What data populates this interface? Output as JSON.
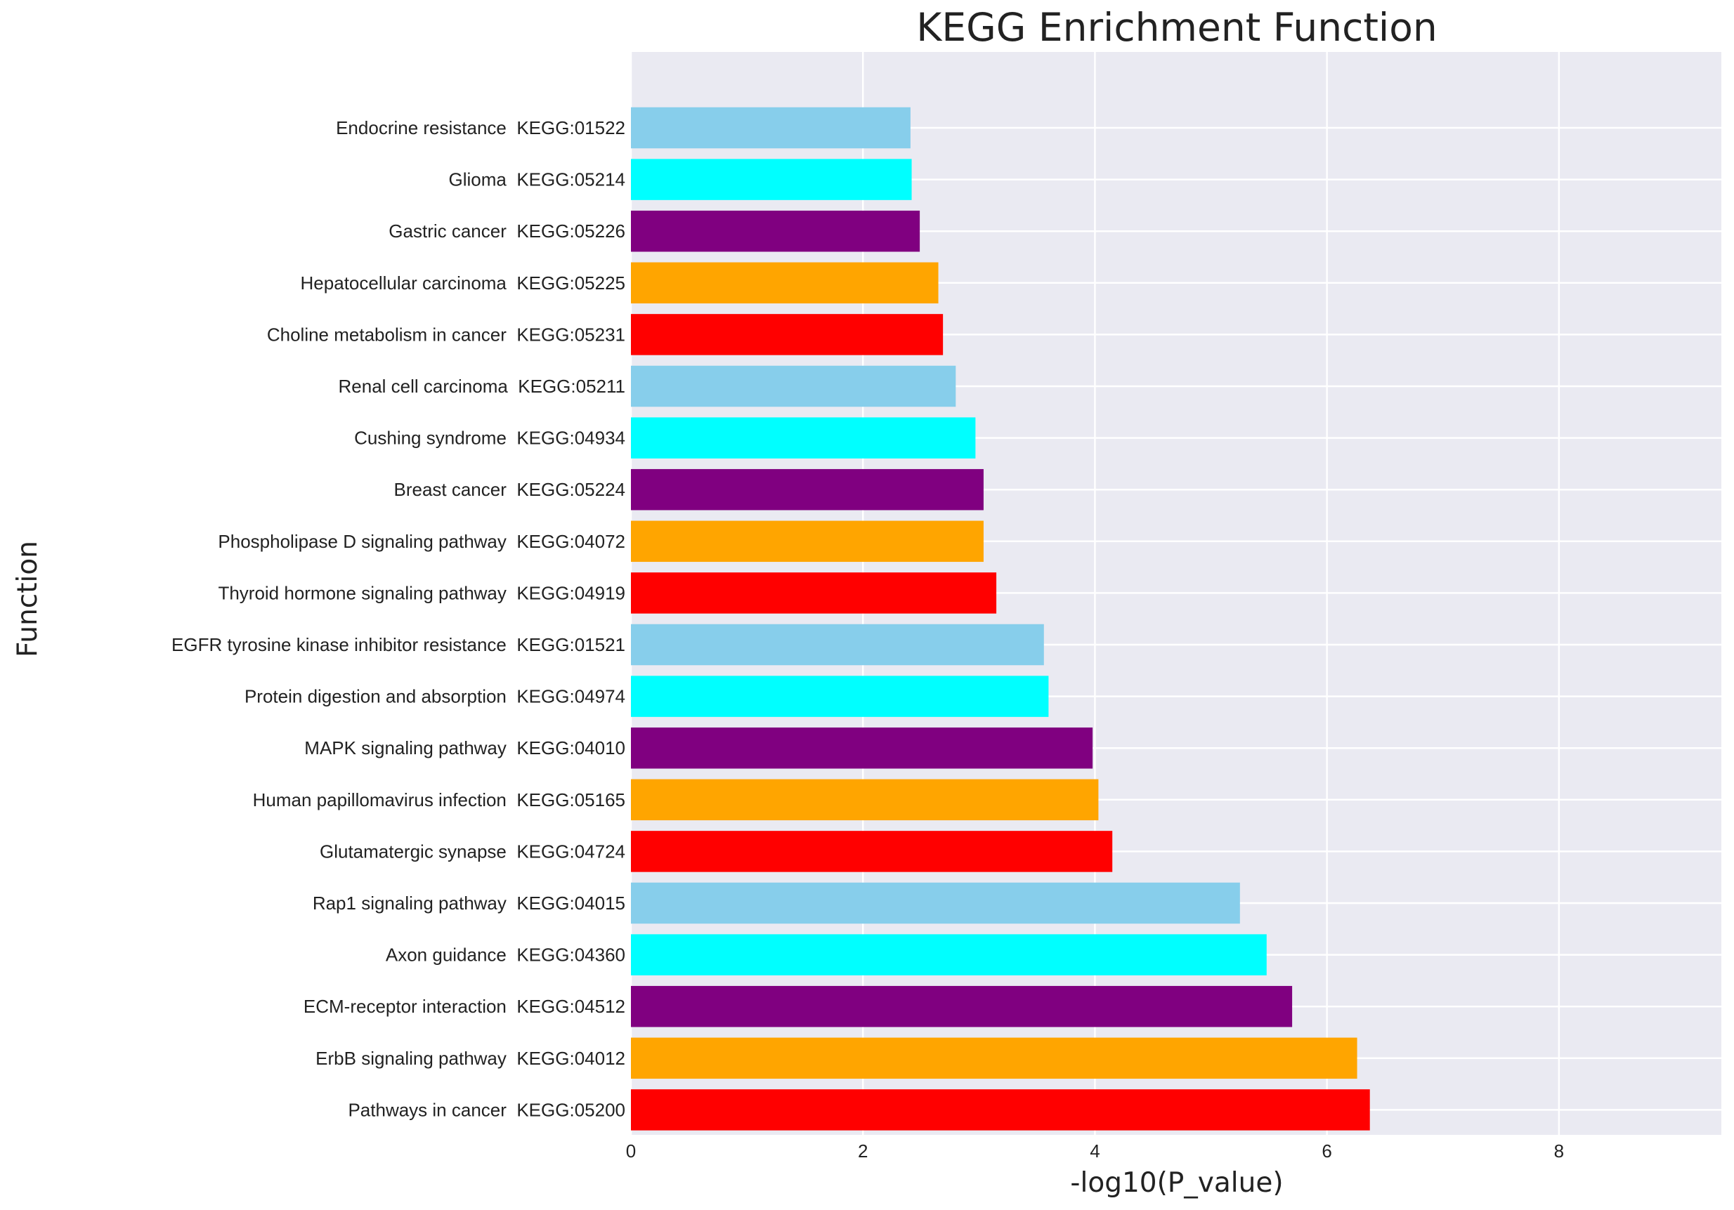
{
  "chart_data": {
    "type": "bar",
    "orientation": "horizontal",
    "title": "KEGG Enrichment Function",
    "xlabel": "-log10(P_value)",
    "ylabel": "Function",
    "xlim": [
      0,
      9.4
    ],
    "xticks": [
      0,
      2,
      4,
      6,
      8
    ],
    "grid": true,
    "background": "#EAEAF2",
    "categories": [
      "Endocrine resistance  KEGG:01522",
      "Glioma  KEGG:05214",
      "Gastric cancer  KEGG:05226",
      "Hepatocellular carcinoma  KEGG:05225",
      "Choline metabolism in cancer  KEGG:05231",
      "Renal cell carcinoma  KEGG:05211",
      "Cushing syndrome  KEGG:04934",
      "Breast cancer  KEGG:05224",
      "Phospholipase D signaling pathway  KEGG:04072",
      "Thyroid hormone signaling pathway  KEGG:04919",
      "EGFR tyrosine kinase inhibitor resistance  KEGG:01521",
      "Protein digestion and absorption  KEGG:04974",
      "MAPK signaling pathway  KEGG:04010",
      "Human papillomavirus infection  KEGG:05165",
      "Glutamatergic synapse  KEGG:04724",
      "Rap1 signaling pathway  KEGG:04015",
      "Axon guidance  KEGG:04360",
      "ECM-receptor interaction  KEGG:04512",
      "ErbB signaling pathway  KEGG:04012",
      "Pathways in cancer  KEGG:05200"
    ],
    "values": [
      2.41,
      2.42,
      2.49,
      2.65,
      2.69,
      2.8,
      2.97,
      3.04,
      3.04,
      3.15,
      3.56,
      3.6,
      3.98,
      4.03,
      4.15,
      5.25,
      5.48,
      5.7,
      6.26,
      6.37
    ],
    "colors": [
      "#87CEEB",
      "#00FFFF",
      "#800080",
      "#FFA500",
      "#FF0000",
      "#87CEEB",
      "#00FFFF",
      "#800080",
      "#FFA500",
      "#FF0000",
      "#87CEEB",
      "#00FFFF",
      "#800080",
      "#FFA500",
      "#FF0000",
      "#87CEEB",
      "#00FFFF",
      "#800080",
      "#FFA500",
      "#FF0000"
    ]
  }
}
